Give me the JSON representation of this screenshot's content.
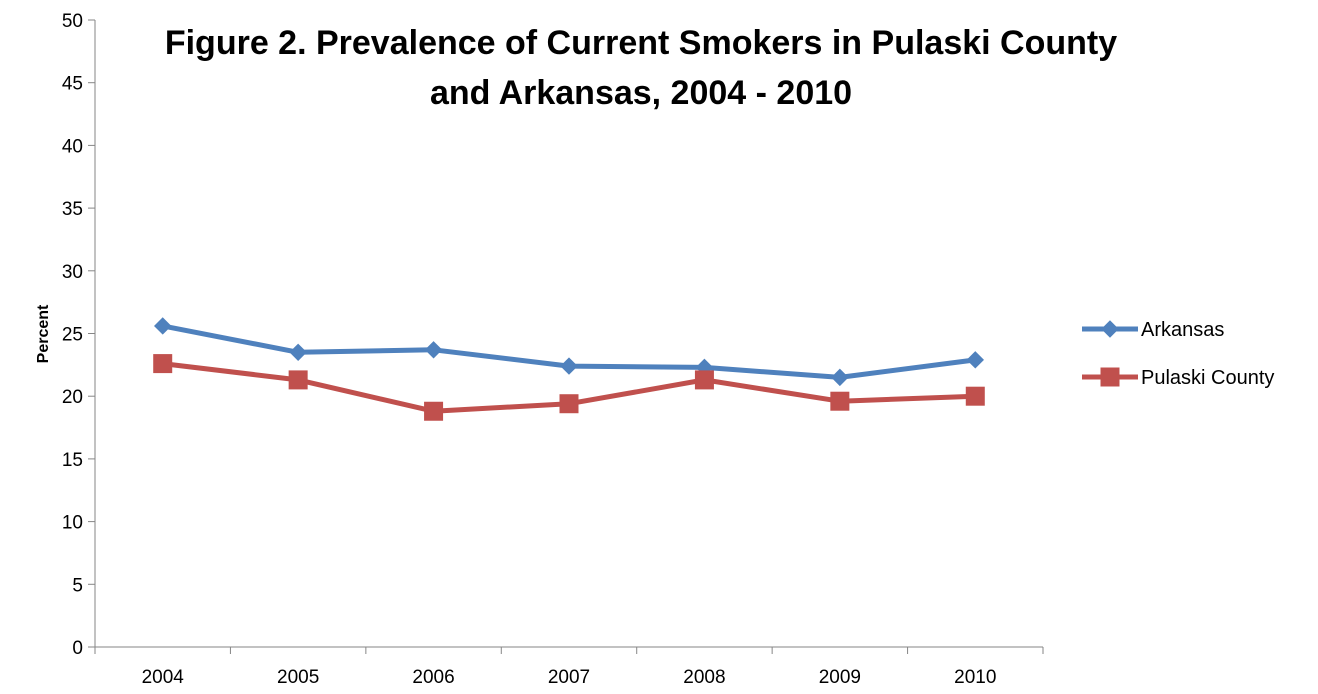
{
  "chart_data": {
    "type": "line",
    "title_lines": [
      "Figure 2. Prevalence of Current Smokers in Pulaski County",
      "and Arkansas, 2004 - 2010"
    ],
    "xlabel": "",
    "ylabel": "Percent",
    "categories": [
      "2004",
      "2005",
      "2006",
      "2007",
      "2008",
      "2009",
      "2010"
    ],
    "ylim": [
      0,
      50
    ],
    "yticks": [
      0,
      5,
      10,
      15,
      20,
      25,
      30,
      35,
      40,
      45,
      50
    ],
    "grid": false,
    "legend_position": "right",
    "series": [
      {
        "name": "Arkansas",
        "values": [
          25.6,
          23.5,
          23.7,
          22.4,
          22.3,
          21.5,
          22.9
        ],
        "color": "#4F81BD",
        "marker": "diamond"
      },
      {
        "name": "Pulaski County",
        "values": [
          22.6,
          21.3,
          18.8,
          19.4,
          21.3,
          19.6,
          20.0
        ],
        "color": "#C0504D",
        "marker": "square"
      }
    ]
  }
}
